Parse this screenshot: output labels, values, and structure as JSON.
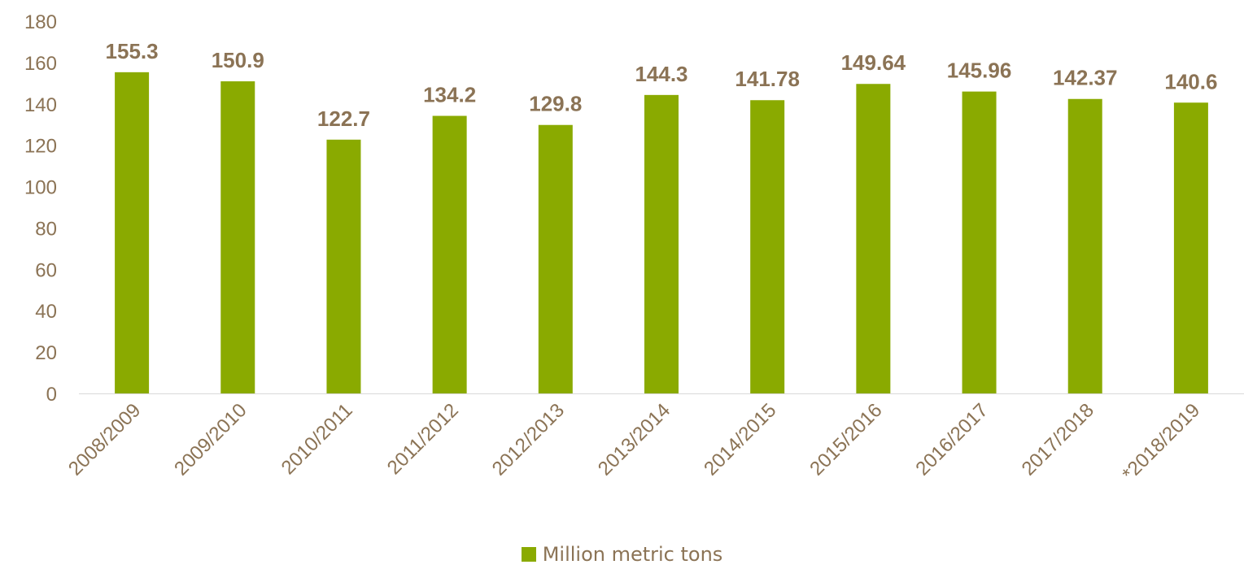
{
  "chart_data": {
    "type": "bar",
    "categories": [
      "2008/2009",
      "2009/2010",
      "2010/2011",
      "2011/2012",
      "2012/2013",
      "2013/2014",
      "2014/2015",
      "2015/2016",
      "2016/2017",
      "2017/2018",
      "*2018/2019"
    ],
    "series": [
      {
        "name": "Million metric tons",
        "values": [
          155.3,
          150.9,
          122.7,
          134.2,
          129.8,
          144.3,
          141.78,
          149.64,
          145.96,
          142.37,
          140.6
        ],
        "labels": [
          "155.3",
          "150.9",
          "122.7",
          "134.2",
          "129.8",
          "144.3",
          "141.78",
          "149.64",
          "145.96",
          "142.37",
          "140.6"
        ]
      }
    ],
    "ylim": [
      0,
      180
    ],
    "yticks": [
      0,
      20,
      40,
      60,
      80,
      100,
      120,
      140,
      160,
      180
    ],
    "grid": false,
    "legend_position": "bottom",
    "colors": {
      "bar": "#8AAA00",
      "text": "#8B7355",
      "axis": "#D9D9D9"
    }
  }
}
